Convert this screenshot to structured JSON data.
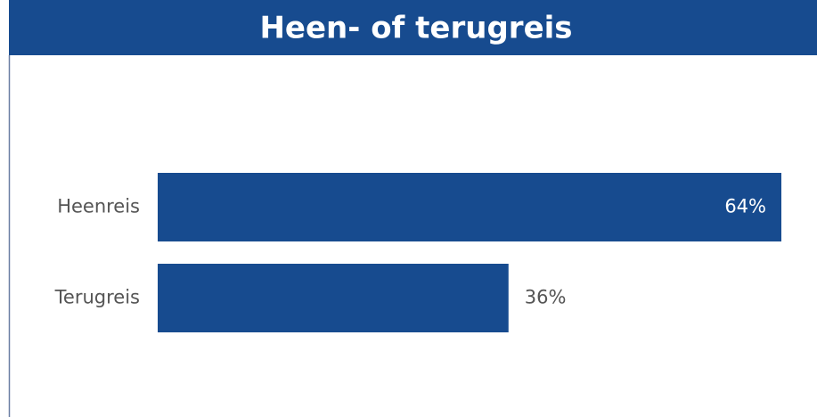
{
  "chart_data": {
    "type": "hbar",
    "title": "Heen- of terugreis",
    "categories": [
      "Heenreis",
      "Terugreis"
    ],
    "values": [
      64,
      36
    ],
    "value_labels": [
      "64%",
      "36%"
    ],
    "color": "#174b8f"
  }
}
